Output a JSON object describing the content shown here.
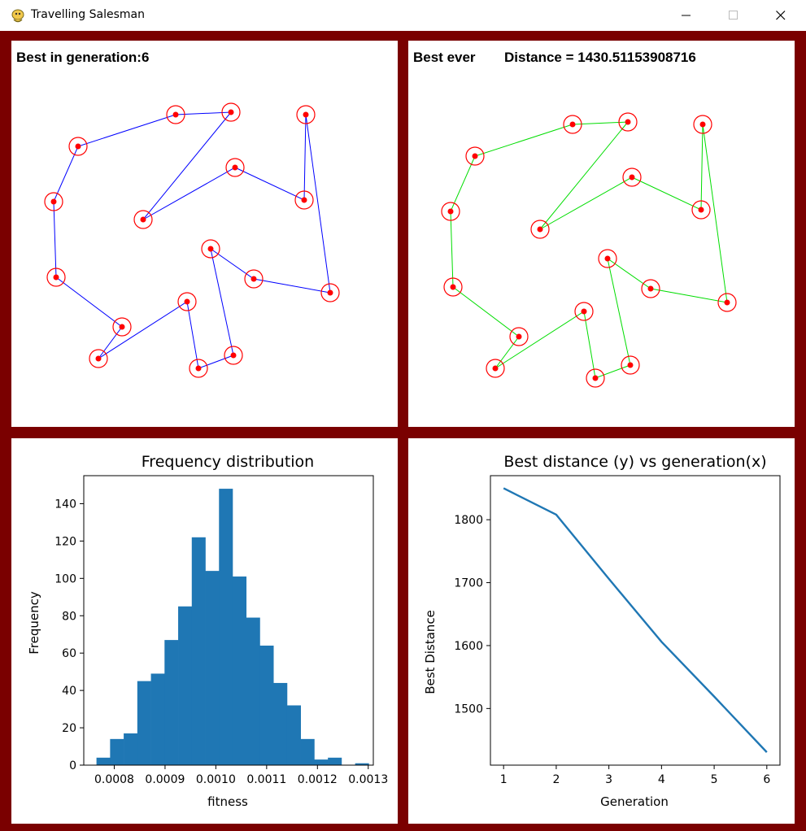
{
  "window": {
    "title": "Travelling Salesman",
    "icon": "pygame-snake-icon",
    "controls": [
      "minimize-icon",
      "maximize-icon",
      "close-icon"
    ]
  },
  "colors": {
    "frame": "#7a0000",
    "current_route": "#0000ff",
    "best_route": "#00dd00",
    "city_ring": "#ff0000",
    "city_dot": "#ff0000",
    "bars": "#1f77b4",
    "line": "#1f77b4"
  },
  "panels": {
    "current": {
      "label": "Best in generation:6"
    },
    "best": {
      "label": "Best ever",
      "distance_label": "Distance = 1430.51153908716"
    }
  },
  "chart_data": [
    {
      "type": "bar",
      "title": "Frequency distribution",
      "xlabel": "fitness",
      "ylabel": "Frequency",
      "xlim": [
        0.00074,
        0.00131
      ],
      "ylim": [
        0,
        155
      ],
      "xticks": [
        0.0008,
        0.0009,
        0.001,
        0.0011,
        0.0012,
        0.0013
      ],
      "xtick_labels": [
        "0.0008",
        "0.0009",
        "0.0010",
        "0.0011",
        "0.0012",
        "0.0013"
      ],
      "yticks": [
        0,
        20,
        40,
        60,
        80,
        100,
        120,
        140
      ],
      "bin_start": 0.000765,
      "bin_width": 2.68e-05,
      "values": [
        4,
        14,
        17,
        45,
        49,
        67,
        85,
        122,
        104,
        148,
        101,
        79,
        64,
        44,
        32,
        14,
        3,
        4,
        0,
        1
      ]
    },
    {
      "type": "line",
      "title": "Best distance (y) vs generation(x)",
      "xlabel": "Generation",
      "ylabel": "Best Distance",
      "x": [
        1,
        2,
        3,
        4,
        5,
        6
      ],
      "y": [
        1850,
        1808,
        1706,
        1606,
        1519,
        1430.5
      ],
      "xlim": [
        0.75,
        6.25
      ],
      "ylim": [
        1410,
        1870
      ],
      "xticks": [
        1,
        2,
        3,
        4,
        5,
        6
      ],
      "yticks": [
        1500,
        1600,
        1700,
        1800
      ]
    }
  ]
}
